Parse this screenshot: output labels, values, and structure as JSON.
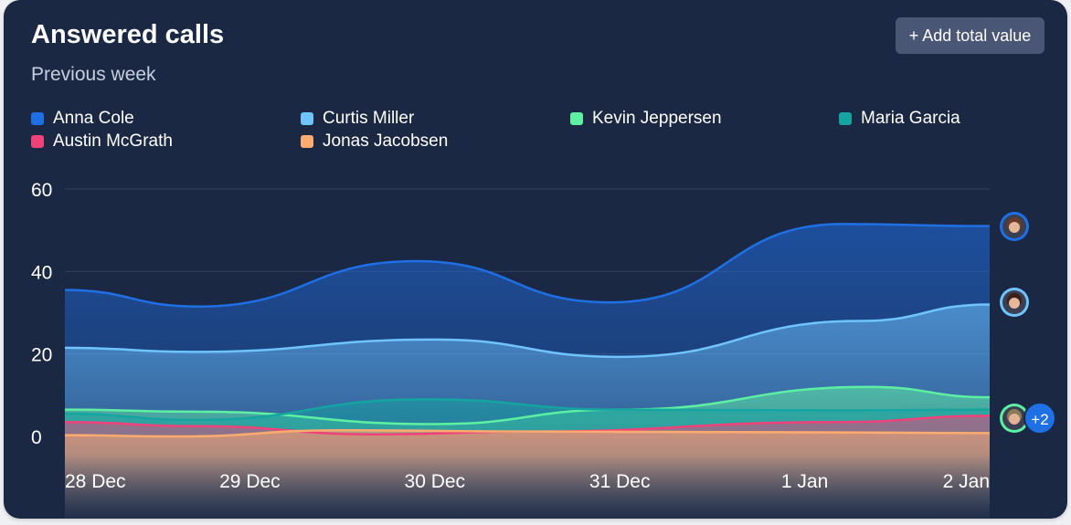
{
  "card": {
    "title": "Answered calls",
    "subtitle": "Previous week",
    "add_button_label": "+ Add total value"
  },
  "colors": {
    "background": "#1b2844",
    "gridline": "#34425f",
    "text": "#ffffff"
  },
  "avatars": {
    "more_count": "+2"
  },
  "chart_data": {
    "type": "area",
    "title": "Answered calls",
    "subtitle": "Previous week",
    "xlabel": "",
    "ylabel": "",
    "categories": [
      "28 Dec",
      "29 Dec",
      "30 Dec",
      "31 Dec",
      "1 Jan",
      "2 Jan"
    ],
    "y_ticks": [
      60,
      40,
      20,
      0
    ],
    "ylim": [
      -12,
      60
    ],
    "grid": true,
    "legend_position": "top",
    "series": [
      {
        "name": "Anna Cole",
        "color": "#1f6fe5",
        "x": [
          0,
          0.72,
          1.9,
          2.95,
          4.2,
          5
        ],
        "values": [
          35.5,
          31.5,
          42.5,
          32.5,
          51.5,
          51
        ]
      },
      {
        "name": "Curtis Miller",
        "color": "#6fc4ff",
        "x": [
          0,
          0.7,
          2,
          3,
          4.3,
          5
        ],
        "values": [
          21.5,
          20.5,
          23.5,
          19.3,
          28,
          32
        ]
      },
      {
        "name": "Kevin Jeppersen",
        "color": "#5ef0a2",
        "x": [
          0,
          0.7,
          2,
          3,
          4.35,
          5
        ],
        "values": [
          6.5,
          6,
          3,
          6.5,
          12,
          9.5
        ]
      },
      {
        "name": "Maria Garcia",
        "color": "#14a5a0",
        "x": [
          0,
          0.7,
          1.95,
          3,
          4.2,
          5
        ],
        "values": [
          5.5,
          4,
          9,
          6.5,
          6.3,
          6.5
        ]
      },
      {
        "name": "Austin McGrath",
        "color": "#f0427a",
        "x": [
          0,
          0.7,
          1.7,
          2.5,
          4.2,
          5
        ],
        "values": [
          3.5,
          2.5,
          0.5,
          1.2,
          3.5,
          5
        ]
      },
      {
        "name": "Jonas Jacobsen",
        "color": "#ffab6e",
        "x": [
          0,
          0.6,
          1.5,
          2.5,
          4,
          5
        ],
        "values": [
          0.3,
          0,
          1.5,
          1.2,
          1,
          0.8
        ]
      }
    ]
  }
}
